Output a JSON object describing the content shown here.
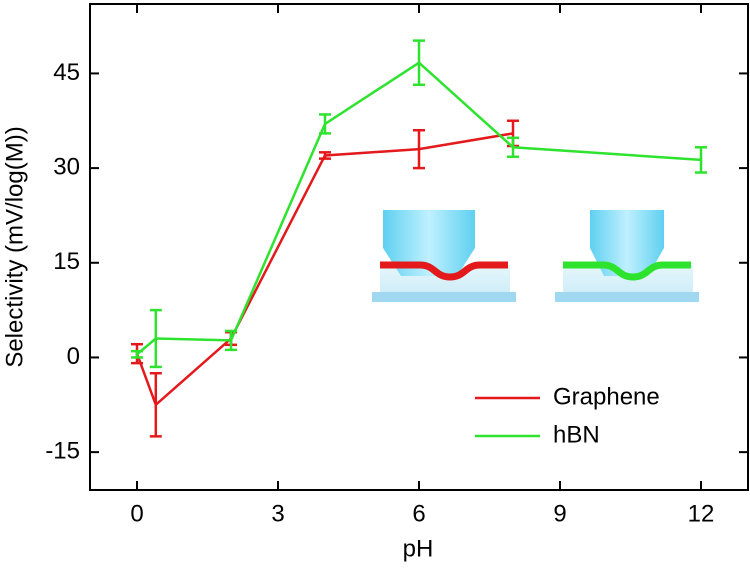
{
  "chart_data": {
    "type": "line",
    "xlabel": "pH",
    "ylabel": "Selectivity (mV/log(M))",
    "xlim": [
      -1,
      13
    ],
    "xticks": [
      0,
      3,
      6,
      9,
      12
    ],
    "ylim": [
      -21,
      56
    ],
    "yticks": [
      -15,
      0,
      15,
      30,
      45
    ],
    "legend": "lower right",
    "series": [
      {
        "name": "Graphene",
        "color": "#e3191c",
        "x": [
          0,
          0.4,
          2,
          4,
          6,
          8
        ],
        "values": [
          0.6,
          -7.5,
          3,
          32,
          33,
          35.5
        ],
        "errors": [
          1.5,
          5,
          1,
          0.5,
          3,
          2
        ]
      },
      {
        "name": "hBN",
        "color": "#2ee32e",
        "x": [
          0,
          0.4,
          2,
          4,
          6,
          8,
          12
        ],
        "values": [
          0.5,
          3,
          2.7,
          37,
          46.7,
          33.3,
          31.3
        ],
        "errors": [
          0.5,
          4.5,
          1.5,
          1.5,
          3.5,
          1.5,
          2
        ]
      }
    ]
  }
}
